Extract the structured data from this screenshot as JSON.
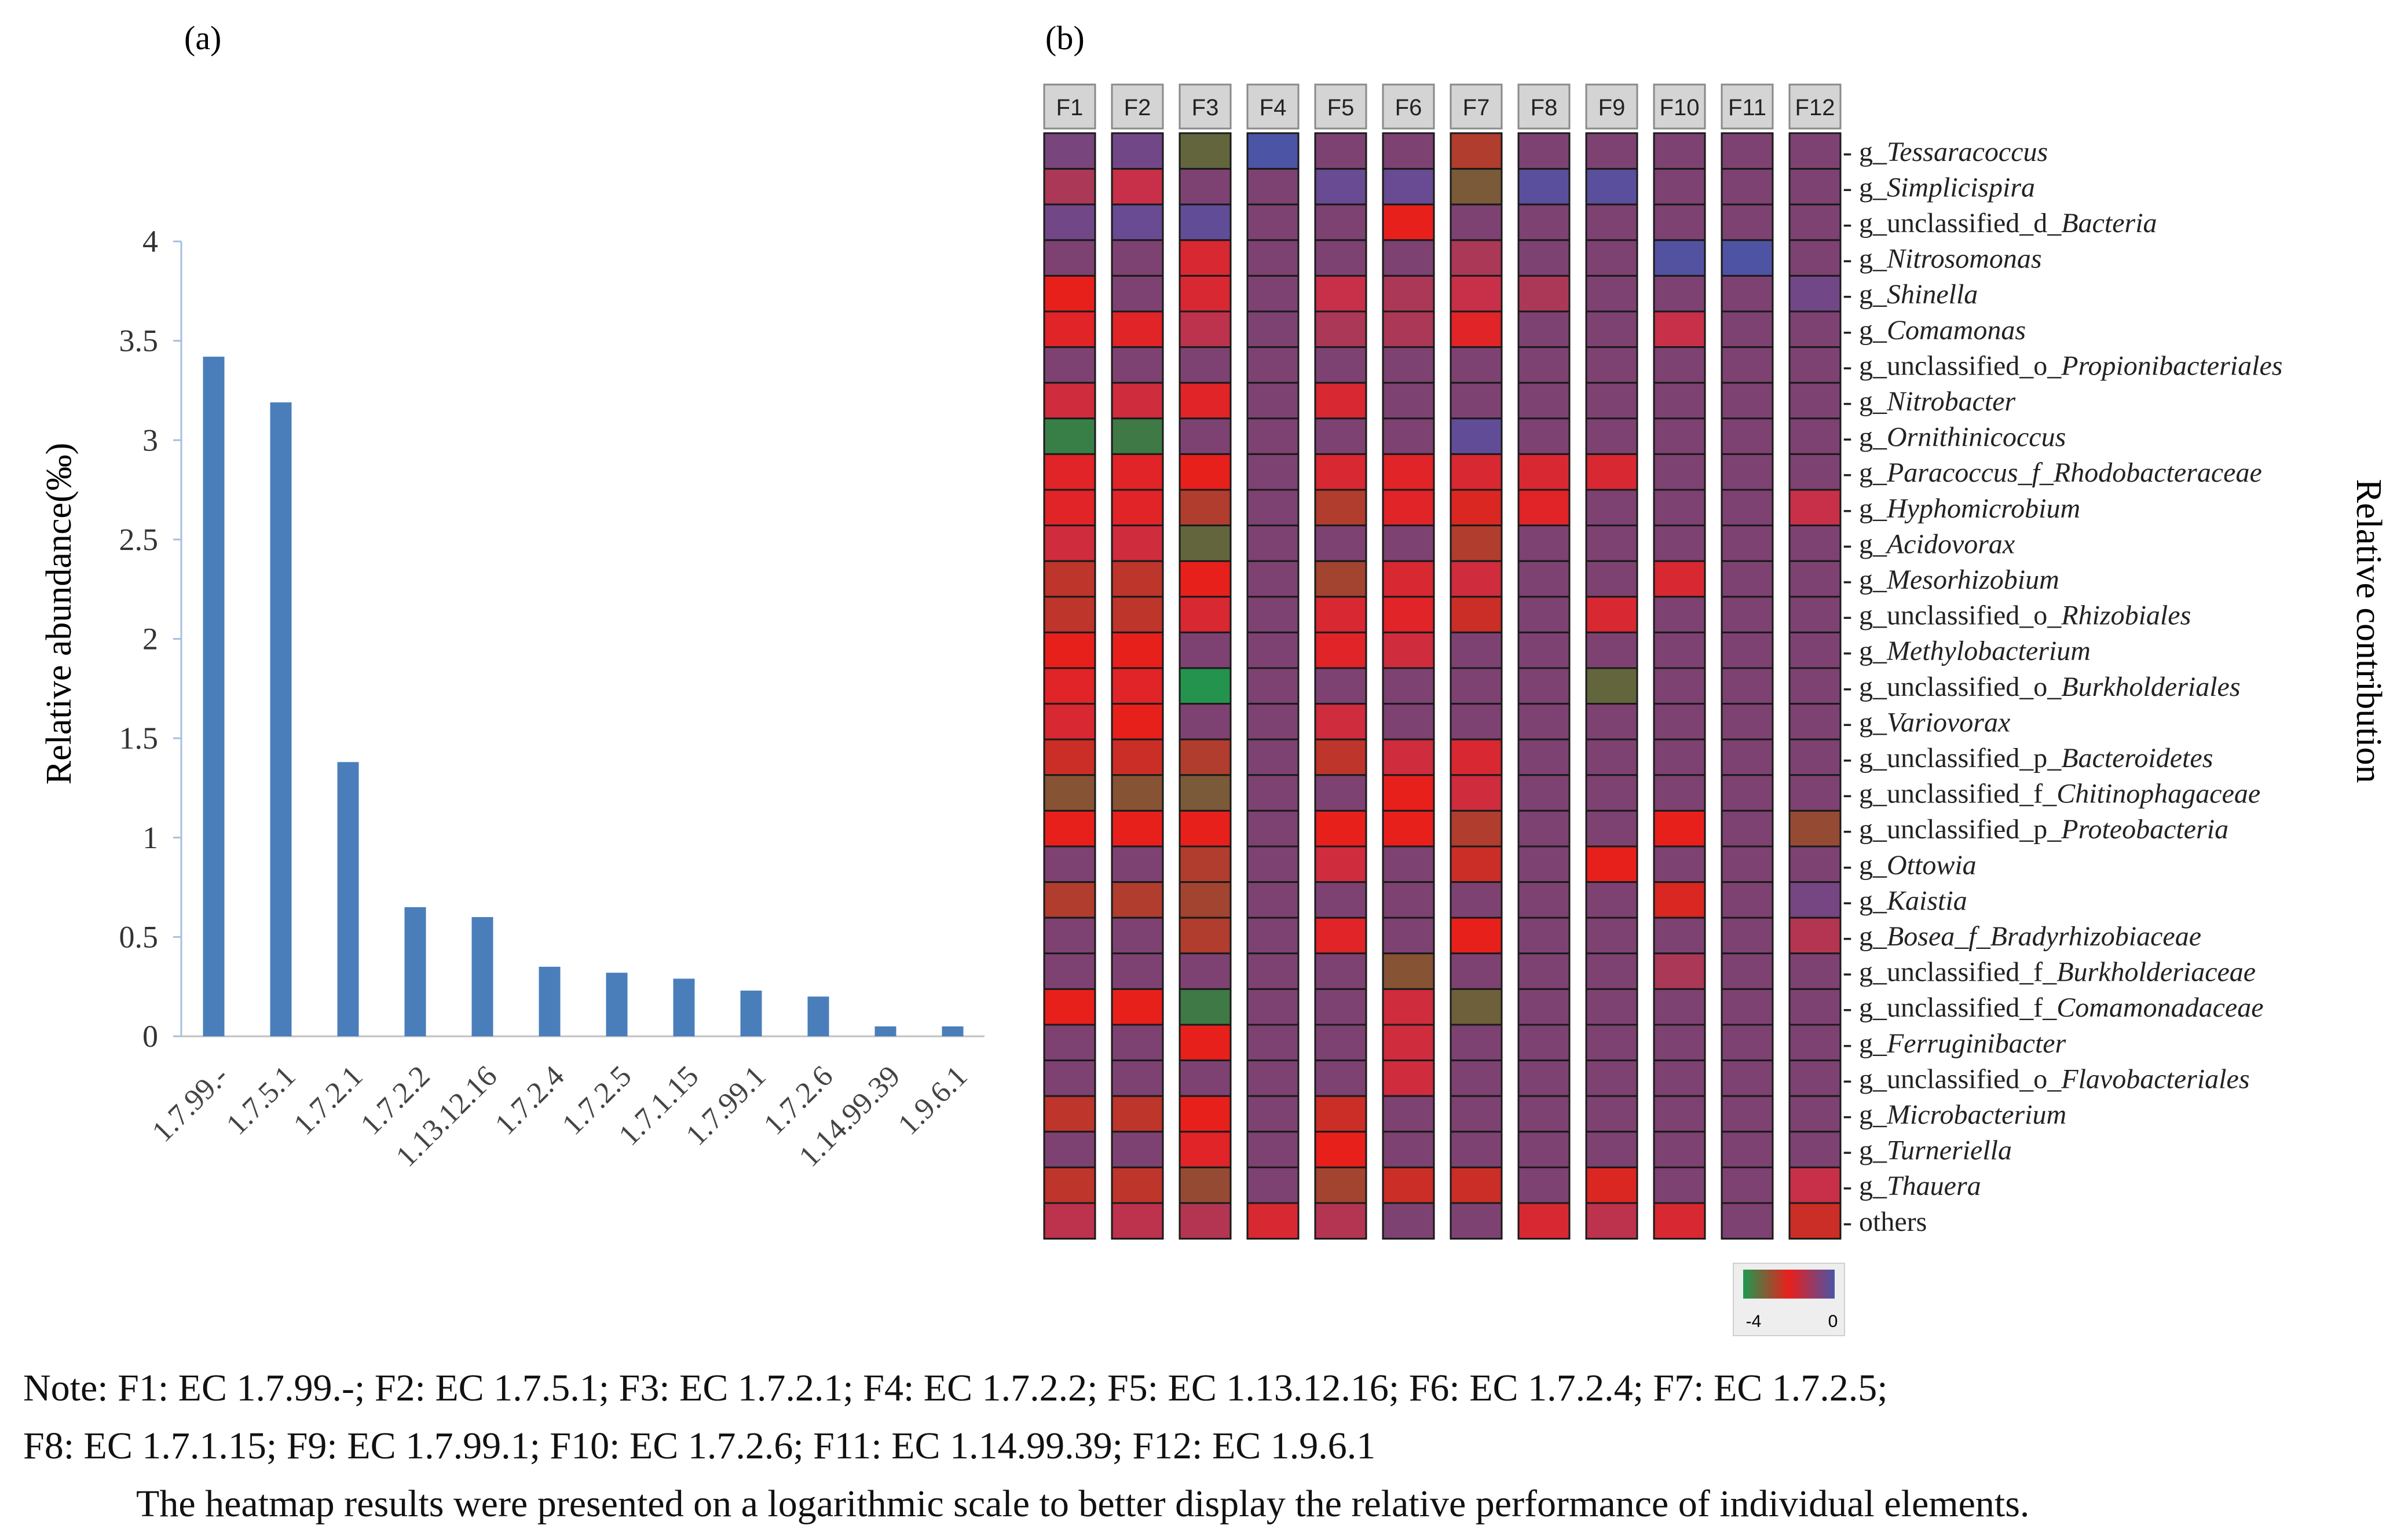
{
  "panels": {
    "a_label": "(a)",
    "b_label": "(b)"
  },
  "chart_data": [
    {
      "type": "bar",
      "panel": "(a)",
      "ylabel": "Relative abundance(‰)",
      "xlabel": "",
      "ylim": [
        0,
        4
      ],
      "yticks": [
        "0",
        "0.5",
        "1",
        "1.5",
        "2",
        "2.5",
        "3",
        "3.5",
        "4"
      ],
      "categories": [
        "1.7.99.-",
        "1.7.5.1",
        "1.7.2.1",
        "1.7.2.2",
        "1.13.12.16",
        "1.7.2.4",
        "1.7.2.5",
        "1.7.1.15",
        "1.7.99.1",
        "1.7.2.6",
        "1.14.99.39",
        "1.9.6.1"
      ],
      "values": [
        3.42,
        3.19,
        1.38,
        0.65,
        0.6,
        0.35,
        0.32,
        0.29,
        0.23,
        0.2,
        0.05,
        0.05
      ],
      "bar_color": "#4a7ebb",
      "grid": false
    },
    {
      "type": "heatmap",
      "panel": "(b)",
      "zlabel": "Relative contribution",
      "scale": "log",
      "zlim": [
        -4,
        0
      ],
      "colorbar_ticks": [
        "-4",
        "0"
      ],
      "colorbar_colors": [
        "#1d9a50",
        "#e8201c",
        "#4c54a6"
      ],
      "columns": [
        "F1",
        "F2",
        "F3",
        "F4",
        "F5",
        "F6",
        "F7",
        "F8",
        "F9",
        "F10",
        "F11",
        "F12"
      ],
      "rows": [
        {
          "prefix": "g_",
          "name": "Tessaracoccus",
          "italic": true
        },
        {
          "prefix": "g_",
          "name": "Simplicispira",
          "italic": true
        },
        {
          "prefix": "g_unclassified_d_",
          "name": "Bacteria",
          "italic": true
        },
        {
          "prefix": "g_",
          "name": "Nitrosomonas",
          "italic": true
        },
        {
          "prefix": "g_",
          "name": "Shinella",
          "italic": true
        },
        {
          "prefix": "g_",
          "name": "Comamonas",
          "italic": true
        },
        {
          "prefix": "g_unclassified_o_",
          "name": "Propionibacteriales",
          "italic": true
        },
        {
          "prefix": "g_",
          "name": "Nitrobacter",
          "italic": true
        },
        {
          "prefix": "g_",
          "name": "Ornithinicoccus",
          "italic": true
        },
        {
          "prefix": "g_",
          "name": "Paracoccus_f_Rhodobacteraceae",
          "italic": true
        },
        {
          "prefix": "g_",
          "name": "Hyphomicrobium",
          "italic": true
        },
        {
          "prefix": "g_",
          "name": "Acidovorax",
          "italic": true
        },
        {
          "prefix": "g_",
          "name": "Mesorhizobium",
          "italic": true
        },
        {
          "prefix": "g_unclassified_o_",
          "name": "Rhizobiales",
          "italic": true
        },
        {
          "prefix": "g_",
          "name": "Methylobacterium",
          "italic": true
        },
        {
          "prefix": "g_unclassified_o_",
          "name": "Burkholderiales",
          "italic": true
        },
        {
          "prefix": "g_",
          "name": "Variovorax",
          "italic": true
        },
        {
          "prefix": "g_unclassified_p_",
          "name": "Bacteroidetes",
          "italic": true
        },
        {
          "prefix": "g_unclassified_f_",
          "name": "Chitinophagaceae",
          "italic": true
        },
        {
          "prefix": "g_unclassified_p_",
          "name": "Proteobacteria",
          "italic": true
        },
        {
          "prefix": "g_",
          "name": "Ottowia",
          "italic": true
        },
        {
          "prefix": "g_",
          "name": "Kaistia",
          "italic": true
        },
        {
          "prefix": "g_",
          "name": "Bosea_f_Bradyrhizobiaceae",
          "italic": true
        },
        {
          "prefix": "g_unclassified_f_",
          "name": "Burkholderiaceae",
          "italic": true
        },
        {
          "prefix": "g_unclassified_f_",
          "name": "Comamonadaceae",
          "italic": true
        },
        {
          "prefix": "g_",
          "name": "Ferruginibacter",
          "italic": true
        },
        {
          "prefix": "g_unclassified_o_",
          "name": "Flavobacteriales",
          "italic": true
        },
        {
          "prefix": "g_",
          "name": "Microbacterium",
          "italic": true
        },
        {
          "prefix": "g_",
          "name": "Turneriella",
          "italic": true
        },
        {
          "prefix": "g_",
          "name": "Thauera",
          "italic": true
        },
        {
          "prefix": "",
          "name": "others",
          "italic": false
        }
      ],
      "values": [
        [
          -0.8,
          -0.6,
          -3.2,
          0,
          -1.0,
          -1.0,
          -2.6,
          -1.0,
          -1.0,
          -1.0,
          -1.0,
          -1.0
        ],
        [
          -1.5,
          -1.8,
          -1.0,
          -1.0,
          -0.4,
          -0.4,
          -3.0,
          -0.2,
          -0.2,
          -1.0,
          -1.0,
          -1.0
        ],
        [
          -0.6,
          -0.4,
          -0.3,
          -1.0,
          -1.0,
          -2.2,
          -1.0,
          -1.0,
          -1.0,
          -1.0,
          -1.0,
          -1.0
        ],
        [
          -1.0,
          -1.0,
          -2.0,
          -1.0,
          -1.0,
          -1.0,
          -1.5,
          -1.0,
          -1.0,
          -0.1,
          -0.05,
          -1.0
        ],
        [
          -2.2,
          -1.0,
          -2.0,
          -1.0,
          -1.8,
          -1.5,
          -1.8,
          -1.5,
          -1.0,
          -1.0,
          -1.0,
          -0.6
        ],
        [
          -2.1,
          -2.1,
          -1.7,
          -1.0,
          -1.5,
          -1.5,
          -2.1,
          -1.0,
          -1.0,
          -1.8,
          -1.0,
          -1.0
        ],
        [
          -1.0,
          -1.0,
          -1.0,
          -1.0,
          -1.0,
          -1.0,
          -1.0,
          -1.0,
          -1.0,
          -1.0,
          -1.0,
          -1.0
        ],
        [
          -1.9,
          -1.9,
          -2.1,
          -1.0,
          -2.0,
          -1.0,
          -1.0,
          -1.0,
          -1.0,
          -1.0,
          -1.0,
          -1.0
        ],
        [
          -3.6,
          -3.5,
          -1.0,
          -1.0,
          -1.0,
          -1.0,
          -0.3,
          -1.0,
          -1.0,
          -1.0,
          -1.0,
          -1.0
        ],
        [
          -2.1,
          -2.1,
          -2.2,
          -1.0,
          -2.0,
          -2.1,
          -2.0,
          -2.0,
          -2.0,
          -1.0,
          -1.0,
          -1.0
        ],
        [
          -2.1,
          -2.1,
          -2.6,
          -1.0,
          -2.6,
          -2.1,
          -2.3,
          -2.1,
          -1.0,
          -1.0,
          -1.0,
          -1.8
        ],
        [
          -1.9,
          -1.9,
          -3.2,
          -1.0,
          -1.0,
          -1.0,
          -2.6,
          -1.0,
          -1.0,
          -1.0,
          -1.0,
          -1.0
        ],
        [
          -2.5,
          -2.5,
          -2.2,
          -1.0,
          -2.7,
          -2.0,
          -1.9,
          -1.0,
          -1.0,
          -2.0,
          -1.0,
          -1.0
        ],
        [
          -2.5,
          -2.5,
          -2.0,
          -1.0,
          -2.0,
          -2.1,
          -2.4,
          -1.0,
          -2.0,
          -1.0,
          -1.0,
          -1.0
        ],
        [
          -2.2,
          -2.2,
          -1.0,
          -1.0,
          -2.1,
          -1.9,
          -1.0,
          -1.0,
          -1.0,
          -1.0,
          -1.0,
          -1.0
        ],
        [
          -2.1,
          -2.1,
          -3.9,
          -1.0,
          -1.0,
          -1.0,
          -1.0,
          -1.0,
          -3.2,
          -1.0,
          -1.0,
          -1.0
        ],
        [
          -2.0,
          -2.2,
          -1.0,
          -1.0,
          -1.9,
          -1.0,
          -1.0,
          -1.0,
          -1.0,
          -1.0,
          -1.0,
          -1.0
        ],
        [
          -2.4,
          -2.4,
          -2.6,
          -1.0,
          -2.5,
          -1.9,
          -2.0,
          -1.0,
          -1.0,
          -1.0,
          -1.0,
          -1.0
        ],
        [
          -2.9,
          -2.9,
          -3.0,
          -1.0,
          -1.0,
          -2.2,
          -1.9,
          -1.0,
          -1.0,
          -1.0,
          -1.0,
          -1.0
        ],
        [
          -2.2,
          -2.2,
          -2.2,
          -1.0,
          -2.2,
          -2.2,
          -2.6,
          -1.0,
          -1.0,
          -2.2,
          -1.0,
          -2.8
        ],
        [
          -1.0,
          -1.0,
          -2.6,
          -1.0,
          -1.9,
          -1.0,
          -2.4,
          -1.0,
          -2.2,
          -1.0,
          -1.0,
          -1.0
        ],
        [
          -2.6,
          -2.6,
          -2.7,
          -1.0,
          -1.0,
          -1.0,
          -1.0,
          -1.0,
          -1.0,
          -2.3,
          -1.0,
          -0.7
        ],
        [
          -1.0,
          -1.0,
          -2.6,
          -1.0,
          -2.1,
          -1.0,
          -2.2,
          -1.0,
          -1.0,
          -1.0,
          -1.0,
          -1.6
        ],
        [
          -1.0,
          -1.0,
          -1.0,
          -1.0,
          -1.0,
          -2.9,
          -1.0,
          -1.0,
          -1.0,
          -1.5,
          -1.0,
          -1.0
        ],
        [
          -2.2,
          -2.2,
          -3.5,
          -1.0,
          -1.0,
          -1.9,
          -3.1,
          -1.0,
          -1.0,
          -1.0,
          -1.0,
          -1.0
        ],
        [
          -1.0,
          -1.0,
          -2.2,
          -1.0,
          -1.0,
          -1.9,
          -1.0,
          -1.0,
          -1.0,
          -1.0,
          -1.0,
          -1.0
        ],
        [
          -1.0,
          -1.0,
          -1.0,
          -1.0,
          -1.0,
          -1.9,
          -1.0,
          -1.0,
          -1.0,
          -1.0,
          -1.0,
          -1.0
        ],
        [
          -2.5,
          -2.5,
          -2.2,
          -1.0,
          -2.4,
          -1.0,
          -1.0,
          -1.0,
          -1.0,
          -1.0,
          -1.0,
          -1.0
        ],
        [
          -1.0,
          -1.0,
          -2.1,
          -1.0,
          -2.2,
          -1.0,
          -1.0,
          -1.0,
          -1.0,
          -1.0,
          -1.0,
          -1.0
        ],
        [
          -2.5,
          -2.5,
          -2.8,
          -1.0,
          -2.7,
          -2.4,
          -2.4,
          -1.0,
          -2.3,
          -1.0,
          -1.0,
          -1.8
        ],
        [
          -1.7,
          -1.7,
          -1.6,
          -2.0,
          -1.6,
          -1.0,
          -1.0,
          -2.0,
          -1.7,
          -2.0,
          -1.0,
          -2.4
        ]
      ]
    }
  ],
  "note": {
    "line1": "Note: F1: EC 1.7.99.-;  F2: EC 1.7.5.1;  F3: EC 1.7.2.1;  F4: EC 1.7.2.2;  F5: EC 1.13.12.16;  F6: EC 1.7.2.4;  F7: EC 1.7.2.5;",
    "line2": "F8: EC 1.7.1.15;  F9: EC 1.7.99.1;  F10: EC 1.7.2.6;  F11: EC 1.14.99.39;  F12: EC 1.9.6.1",
    "line3": "The heatmap results were presented on a logarithmic scale to better display the relative performance of individual elements."
  }
}
